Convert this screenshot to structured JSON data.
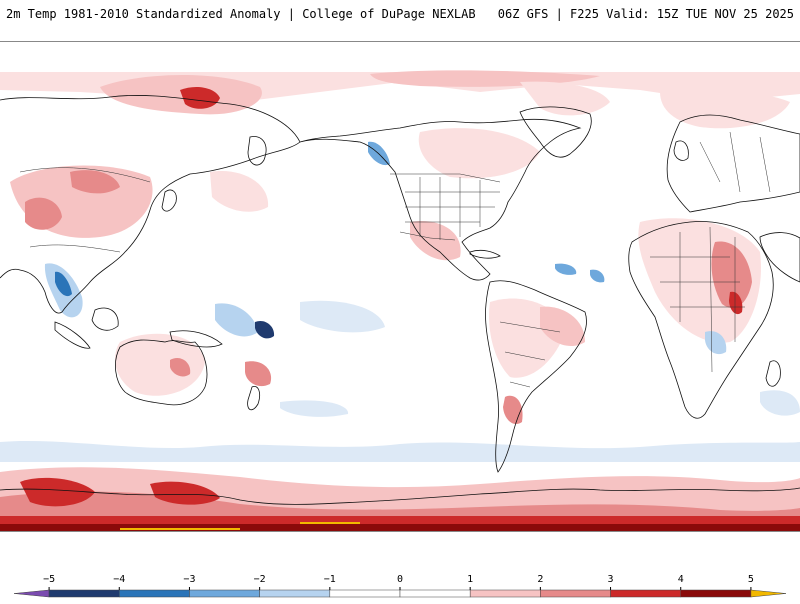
{
  "header": {
    "left_title": "2m Temp 1981-2010 Standardized Anomaly | College of DuPage NEXLAB",
    "right_title": "06Z GFS | F225 Valid: 15Z TUE NOV 25 2025"
  },
  "colorbar": {
    "ticks": [
      "-5",
      "-4",
      "-3",
      "-2",
      "-1",
      "0",
      "1",
      "2",
      "3",
      "4",
      "5"
    ],
    "min": -5.5,
    "max": 5.5,
    "bins": [
      {
        "from": -5.5,
        "to": -5,
        "color": "#7b4bb0"
      },
      {
        "from": -5,
        "to": -4,
        "color": "#1f3a6e"
      },
      {
        "from": -4,
        "to": -3,
        "color": "#2a74b8"
      },
      {
        "from": -3,
        "to": -2,
        "color": "#6ea8dc"
      },
      {
        "from": -2,
        "to": -1,
        "color": "#b6d3ef"
      },
      {
        "from": -1,
        "to": 0,
        "color": "#ffffff"
      },
      {
        "from": 0,
        "to": 1,
        "color": "#ffffff"
      },
      {
        "from": 1,
        "to": 2,
        "color": "#f6c3c3"
      },
      {
        "from": 2,
        "to": 3,
        "color": "#e68a8a"
      },
      {
        "from": 3,
        "to": 4,
        "color": "#cc2a2a"
      },
      {
        "from": 4,
        "to": 5,
        "color": "#8a0a0a"
      },
      {
        "from": 5,
        "to": 5.5,
        "color": "#f2b800"
      }
    ]
  },
  "map": {
    "projection": "equirectangular",
    "center_longitude": "180",
    "colors": {
      "weak_warm": "#fbe0e0",
      "warm": "#f6c3c3",
      "strong_warm": "#e68a8a",
      "very_strong_warm": "#cc2a2a",
      "extreme_warm": "#8a0a0a",
      "weak_cold": "#dde9f6",
      "cold": "#b6d3ef",
      "strong_cold": "#6ea8dc",
      "very_strong_cold": "#2a74b8",
      "coastline": "#111111"
    }
  }
}
